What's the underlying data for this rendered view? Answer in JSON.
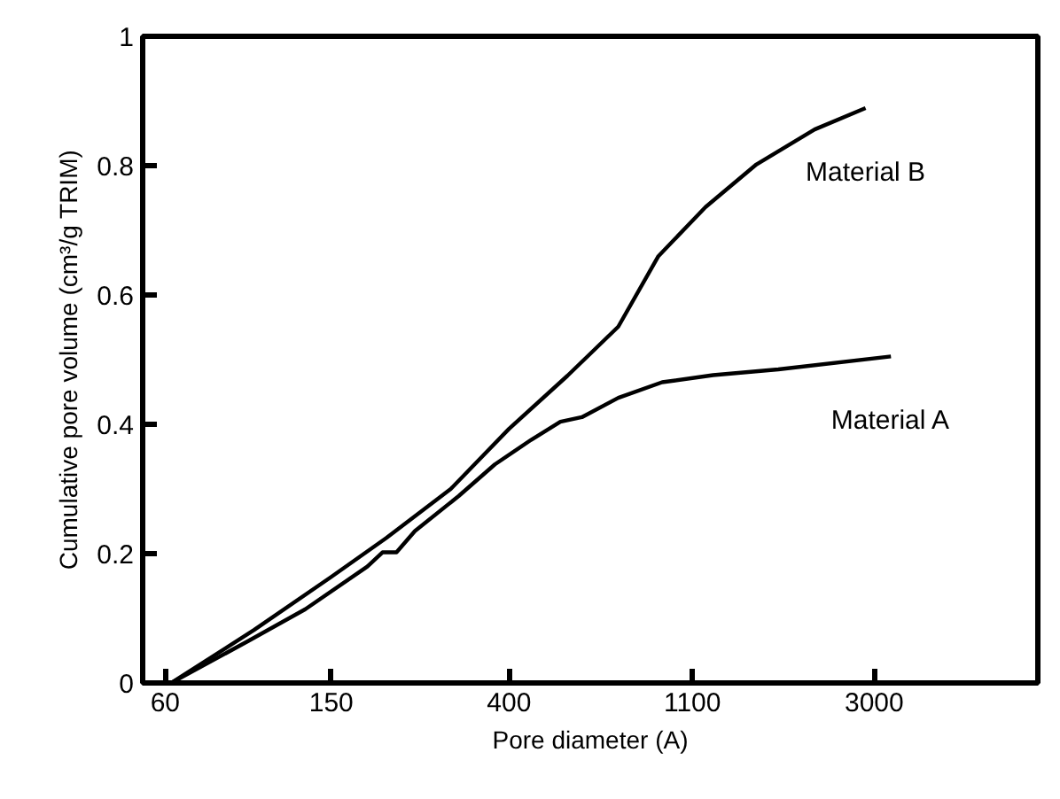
{
  "chart_data": {
    "type": "line",
    "xlabel": "Pore diameter (A)",
    "ylabel": "Cumulative pore volume (cm³/g TRIM)",
    "log": "x",
    "xlim": [
      53,
      7400
    ],
    "ylim": [
      0,
      1
    ],
    "xticks": [
      60,
      150,
      400,
      1100,
      3000
    ],
    "yticks": [
      0,
      0.2,
      0.4,
      0.6,
      0.8,
      1
    ],
    "grid": false,
    "marker": "none",
    "line_style": "solid",
    "series": [
      {
        "name": "Material B",
        "color": "#000000",
        "x": [
          62,
          98,
          150,
          203,
          290,
          400,
          552,
          731,
          912,
          1183,
          1567,
          2160,
          2860
        ],
        "values": [
          0,
          0.082,
          0.164,
          0.224,
          0.3,
          0.393,
          0.475,
          0.551,
          0.66,
          0.736,
          0.802,
          0.856,
          0.889
        ]
      },
      {
        "name": "Material A",
        "color": "#000000",
        "x": [
          62,
          95,
          130,
          183,
          199,
          215,
          238,
          303,
          370,
          452,
          531,
          598,
          731,
          931,
          1233,
          1767,
          3290
        ],
        "values": [
          0,
          0.065,
          0.114,
          0.18,
          0.202,
          0.202,
          0.235,
          0.289,
          0.338,
          0.376,
          0.404,
          0.411,
          0.441,
          0.465,
          0.476,
          0.485,
          0.505
        ]
      }
    ]
  }
}
